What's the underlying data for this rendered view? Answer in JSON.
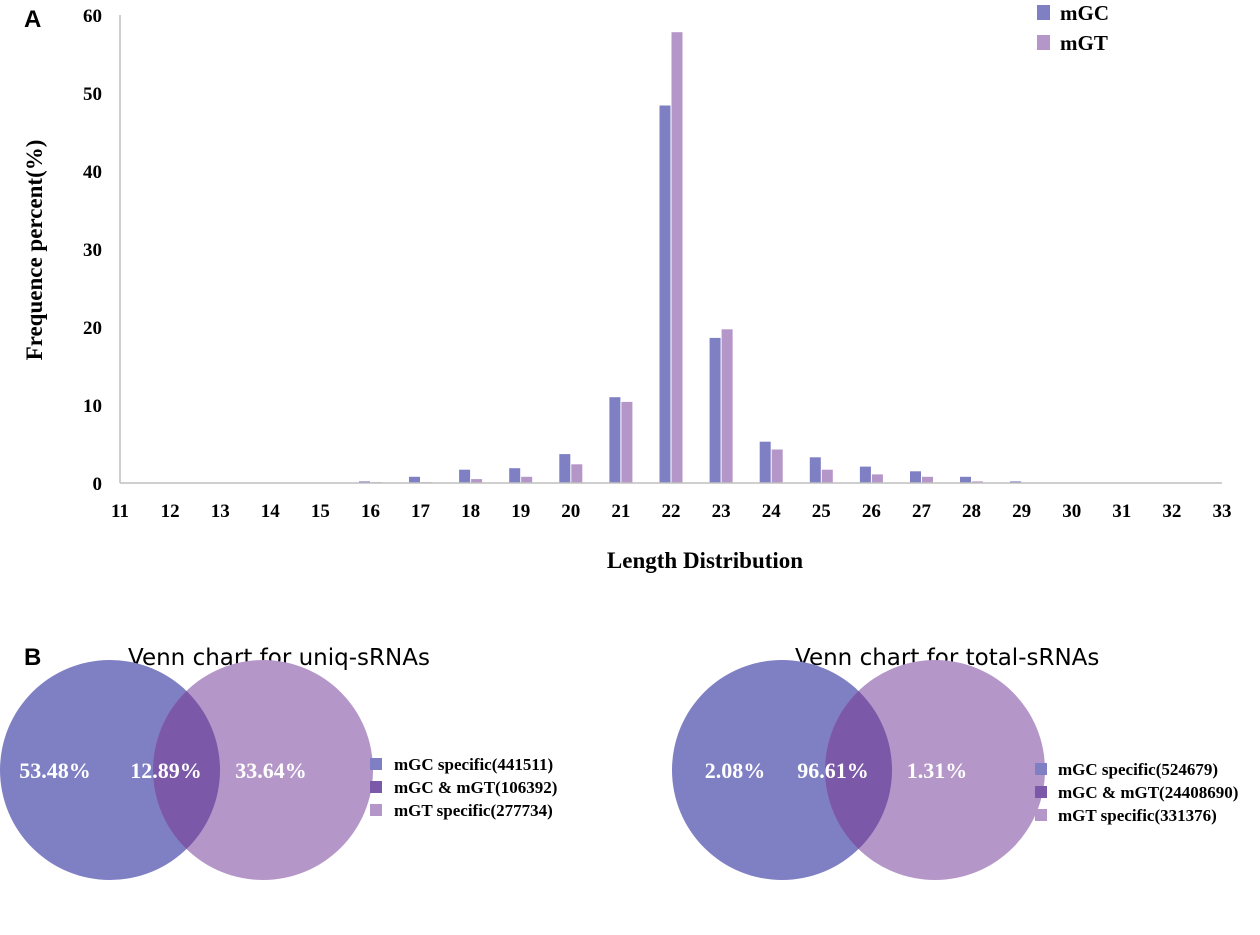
{
  "panel_a_label": "A",
  "panel_b_label": "B",
  "colors": {
    "mGC": "#7f7fc4",
    "mGT": "#b596c8",
    "overlap": "#7b58a8"
  },
  "chart_data": [
    {
      "type": "bar",
      "title": "",
      "xlabel": "Length Distribution",
      "ylabel": "Frequence percent(%)",
      "ylim": [
        0,
        60
      ],
      "yticks": [
        0,
        10,
        20,
        30,
        40,
        50,
        60
      ],
      "grid": false,
      "legend_position": "top-right",
      "categories": [
        "11",
        "12",
        "13",
        "14",
        "15",
        "16",
        "17",
        "18",
        "19",
        "20",
        "21",
        "22",
        "23",
        "24",
        "25",
        "26",
        "27",
        "28",
        "29",
        "30",
        "31",
        "32",
        "33"
      ],
      "series": [
        {
          "name": "mGC",
          "values": [
            0,
            0,
            0,
            0,
            0,
            0.2,
            0.8,
            1.7,
            1.9,
            3.7,
            11.0,
            48.4,
            18.6,
            5.3,
            3.3,
            2.1,
            1.5,
            0.8,
            0.2,
            0,
            0,
            0,
            0
          ]
        },
        {
          "name": "mGT",
          "values": [
            0,
            0,
            0,
            0,
            0,
            0.1,
            0.1,
            0.5,
            0.8,
            2.4,
            10.4,
            57.8,
            19.7,
            4.3,
            1.7,
            1.1,
            0.8,
            0.2,
            0,
            0,
            0,
            0,
            0
          ]
        }
      ]
    },
    {
      "type": "venn",
      "title": "Venn chart for uniq-sRNAs",
      "regions": [
        {
          "key": "mGC",
          "percent": "53.48%",
          "legend": "mGC specific(441511)"
        },
        {
          "key": "overlap",
          "percent": "12.89%",
          "legend": "mGC & mGT(106392)"
        },
        {
          "key": "mGT",
          "percent": "33.64%",
          "legend": "mGT specific(277734)"
        }
      ]
    },
    {
      "type": "venn",
      "title": "Venn chart for total-sRNAs",
      "regions": [
        {
          "key": "mGC",
          "percent": "2.08%",
          "legend": "mGC specific(524679)"
        },
        {
          "key": "overlap",
          "percent": "96.61%",
          "legend": "mGC & mGT(24408690)"
        },
        {
          "key": "mGT",
          "percent": "1.31%",
          "legend": "mGT specific(331376)"
        }
      ]
    }
  ]
}
